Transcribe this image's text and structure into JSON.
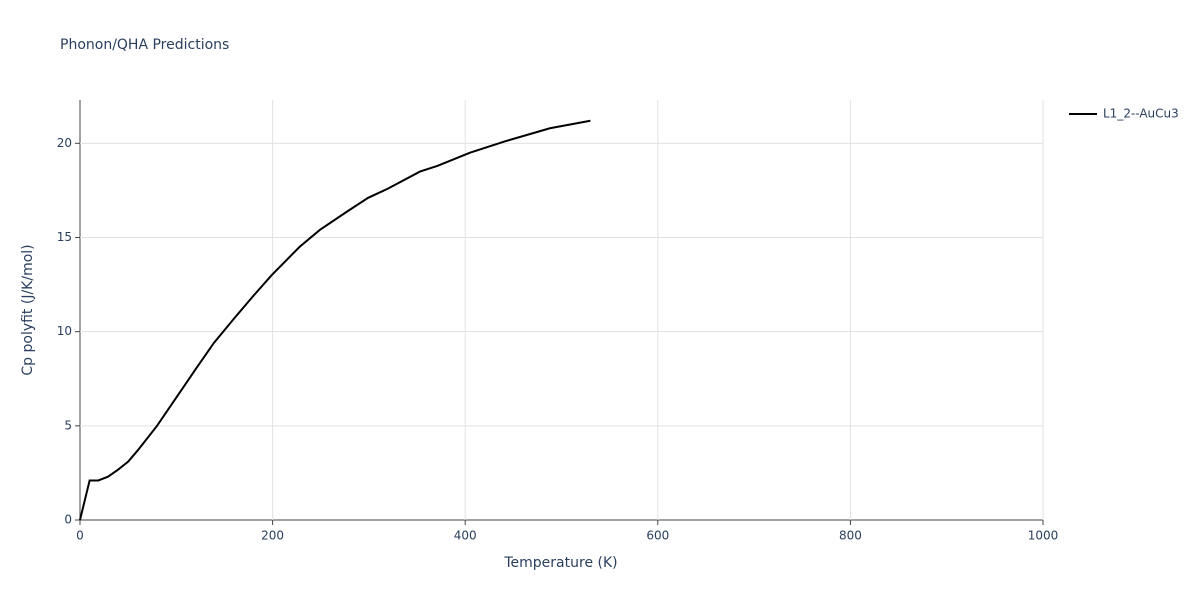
{
  "chart_data": {
    "type": "line",
    "title": "Phonon/QHA Predictions",
    "x_label": "Temperature (K)",
    "y_label": "Cp polyfit (J/K/mol)",
    "x": [
      0,
      10,
      19,
      29,
      39,
      50,
      60,
      80,
      100,
      120,
      139,
      160,
      180,
      199,
      228,
      249,
      278,
      299,
      320,
      353,
      371,
      405,
      441,
      488,
      530
    ],
    "series": [
      {
        "name": "L1_2--AuCu3",
        "color": "#000000",
        "values": [
          0,
          2.1,
          2.1,
          2.3,
          2.65,
          3.1,
          3.7,
          5.0,
          6.5,
          8.0,
          9.4,
          10.7,
          11.9,
          13.0,
          14.5,
          15.4,
          16.4,
          17.1,
          17.6,
          18.5,
          18.8,
          19.5,
          20.1,
          20.8,
          21.2
        ]
      }
    ],
    "xlim": [
      0,
      1000
    ],
    "xticks": [
      0,
      200,
      400,
      600,
      800,
      1000
    ],
    "ylim": [
      0,
      22.3
    ],
    "yticks": [
      0,
      5,
      10,
      15,
      20
    ],
    "grid": true,
    "legend": "right"
  }
}
